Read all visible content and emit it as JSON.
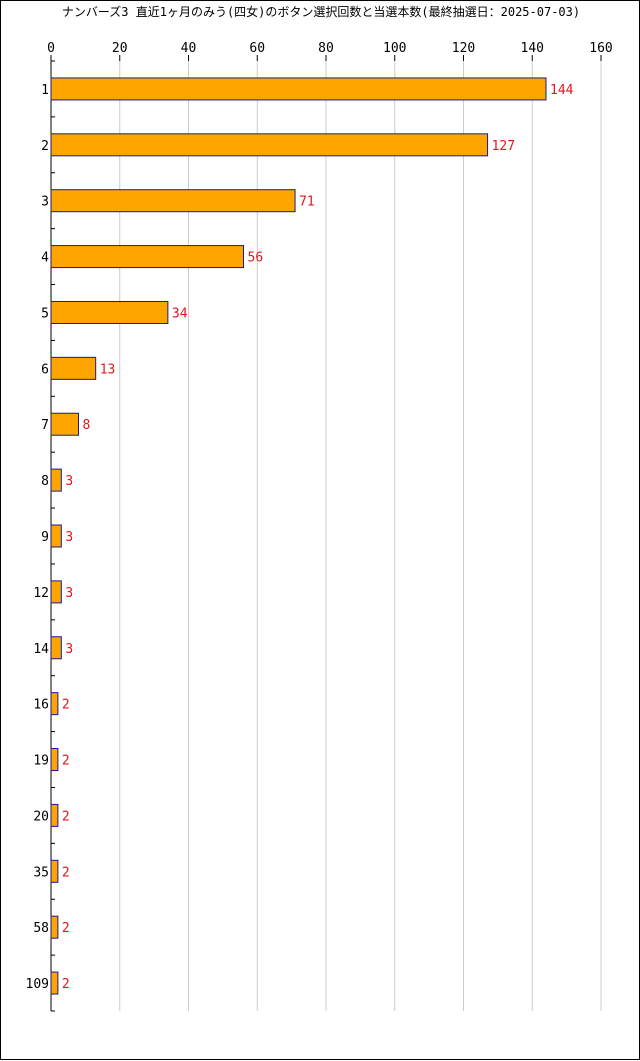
{
  "chart_data": {
    "type": "bar",
    "orientation": "horizontal",
    "title": "ナンバーズ3 直近1ヶ月のみう(四女)のボタン選択回数と当選本数(最終抽選日：2025-07-03)",
    "categories": [
      "1",
      "2",
      "3",
      "4",
      "5",
      "6",
      "7",
      "8",
      "9",
      "12",
      "14",
      "16",
      "19",
      "20",
      "35",
      "58",
      "109"
    ],
    "values": [
      144,
      127,
      71,
      56,
      34,
      13,
      8,
      3,
      3,
      3,
      3,
      2,
      2,
      2,
      2,
      2,
      2
    ],
    "xlim": [
      0,
      160
    ],
    "xticks": [
      0,
      20,
      40,
      60,
      80,
      100,
      120,
      140,
      160
    ],
    "grid": true,
    "colors": {
      "bar_fill": "#FFA500",
      "bar_stroke": "#1a1a8c",
      "value_label": "#e8141e",
      "grid": "#cccccc",
      "axis": "#000000"
    }
  }
}
